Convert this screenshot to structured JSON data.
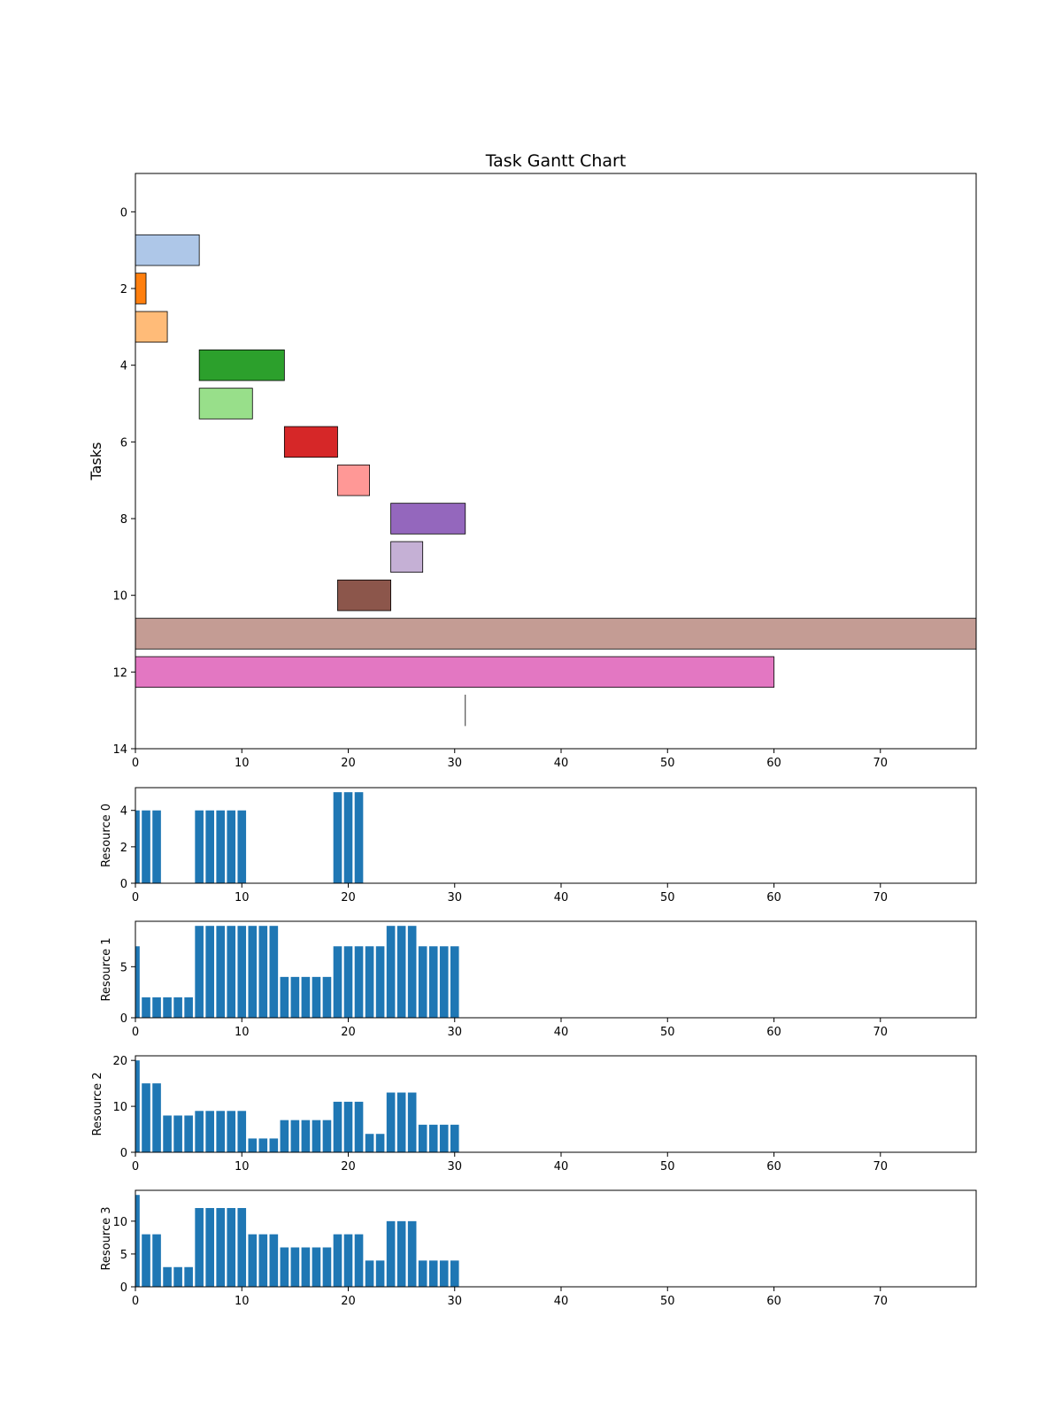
{
  "chart_data": [
    {
      "type": "gantt",
      "title": "Task Gantt Chart",
      "ylabel": "Tasks",
      "xlim": [
        0,
        79
      ],
      "ylim": [
        14,
        -1
      ],
      "xticks": [
        0,
        10,
        20,
        30,
        40,
        50,
        60,
        70
      ],
      "yticks": [
        0,
        2,
        4,
        6,
        8,
        10,
        12,
        14
      ],
      "grid": false,
      "tasks": [
        {
          "task": 1,
          "start": 0,
          "duration": 6,
          "color": "#aec7e8"
        },
        {
          "task": 2,
          "start": 0,
          "duration": 1,
          "color": "#ff7f0e"
        },
        {
          "task": 3,
          "start": 0,
          "duration": 3,
          "color": "#ffbb78"
        },
        {
          "task": 4,
          "start": 6,
          "duration": 8,
          "color": "#2ca02c"
        },
        {
          "task": 5,
          "start": 6,
          "duration": 5,
          "color": "#98df8a"
        },
        {
          "task": 6,
          "start": 14,
          "duration": 5,
          "color": "#d62728"
        },
        {
          "task": 7,
          "start": 19,
          "duration": 3,
          "color": "#ff9896"
        },
        {
          "task": 8,
          "start": 24,
          "duration": 7,
          "color": "#9467bd"
        },
        {
          "task": 9,
          "start": 24,
          "duration": 3,
          "color": "#c5b0d5"
        },
        {
          "task": 10,
          "start": 19,
          "duration": 5,
          "color": "#8c564b"
        },
        {
          "task": 11,
          "start": 0,
          "duration": 79,
          "color": "#c49c94"
        },
        {
          "task": 12,
          "start": 0,
          "duration": 60,
          "color": "#e377c2"
        },
        {
          "task": 13,
          "start": 31,
          "duration": 0,
          "color": "#7f7f7f"
        }
      ]
    },
    {
      "type": "bar",
      "ylabel": "Resource 0",
      "xlim": [
        0,
        79
      ],
      "ylim": [
        0,
        5.25
      ],
      "xticks": [
        0,
        10,
        20,
        30,
        40,
        50,
        60,
        70
      ],
      "yticks": [
        0,
        2,
        4
      ],
      "color": "#1f77b4",
      "x": [
        0,
        1,
        2,
        3,
        4,
        5,
        6,
        7,
        8,
        9,
        10,
        11,
        12,
        13,
        14,
        15,
        16,
        17,
        18,
        19,
        20,
        21,
        22,
        23,
        24,
        25,
        26,
        27,
        28,
        29,
        30
      ],
      "values": [
        4,
        4,
        4,
        0,
        0,
        0,
        4,
        4,
        4,
        4,
        4,
        0,
        0,
        0,
        0,
        0,
        0,
        0,
        0,
        5,
        5,
        5,
        0,
        0,
        0,
        0,
        0,
        0,
        0,
        0,
        0
      ]
    },
    {
      "type": "bar",
      "ylabel": "Resource 1",
      "xlim": [
        0,
        79
      ],
      "ylim": [
        0,
        9.45
      ],
      "xticks": [
        0,
        10,
        20,
        30,
        40,
        50,
        60,
        70
      ],
      "yticks": [
        0,
        5
      ],
      "color": "#1f77b4",
      "x": [
        0,
        1,
        2,
        3,
        4,
        5,
        6,
        7,
        8,
        9,
        10,
        11,
        12,
        13,
        14,
        15,
        16,
        17,
        18,
        19,
        20,
        21,
        22,
        23,
        24,
        25,
        26,
        27,
        28,
        29,
        30
      ],
      "values": [
        7,
        2,
        2,
        2,
        2,
        2,
        9,
        9,
        9,
        9,
        9,
        9,
        9,
        9,
        4,
        4,
        4,
        4,
        4,
        7,
        7,
        7,
        7,
        7,
        9,
        9,
        9,
        7,
        7,
        7,
        7
      ]
    },
    {
      "type": "bar",
      "ylabel": "Resource 2",
      "xlim": [
        0,
        79
      ],
      "ylim": [
        0,
        21
      ],
      "xticks": [
        0,
        10,
        20,
        30,
        40,
        50,
        60,
        70
      ],
      "yticks": [
        0,
        10,
        20
      ],
      "color": "#1f77b4",
      "x": [
        0,
        1,
        2,
        3,
        4,
        5,
        6,
        7,
        8,
        9,
        10,
        11,
        12,
        13,
        14,
        15,
        16,
        17,
        18,
        19,
        20,
        21,
        22,
        23,
        24,
        25,
        26,
        27,
        28,
        29,
        30
      ],
      "values": [
        20,
        15,
        15,
        8,
        8,
        8,
        9,
        9,
        9,
        9,
        9,
        3,
        3,
        3,
        7,
        7,
        7,
        7,
        7,
        11,
        11,
        11,
        4,
        4,
        13,
        13,
        13,
        6,
        6,
        6,
        6
      ]
    },
    {
      "type": "bar",
      "ylabel": "Resource 3",
      "xlim": [
        0,
        79
      ],
      "ylim": [
        0,
        14.7
      ],
      "xticks": [
        0,
        10,
        20,
        30,
        40,
        50,
        60,
        70
      ],
      "yticks": [
        0,
        5,
        10
      ],
      "color": "#1f77b4",
      "x": [
        0,
        1,
        2,
        3,
        4,
        5,
        6,
        7,
        8,
        9,
        10,
        11,
        12,
        13,
        14,
        15,
        16,
        17,
        18,
        19,
        20,
        21,
        22,
        23,
        24,
        25,
        26,
        27,
        28,
        29,
        30
      ],
      "values": [
        14,
        8,
        8,
        3,
        3,
        3,
        12,
        12,
        12,
        12,
        12,
        8,
        8,
        8,
        6,
        6,
        6,
        6,
        6,
        8,
        8,
        8,
        4,
        4,
        10,
        10,
        10,
        4,
        4,
        4,
        4
      ]
    }
  ]
}
